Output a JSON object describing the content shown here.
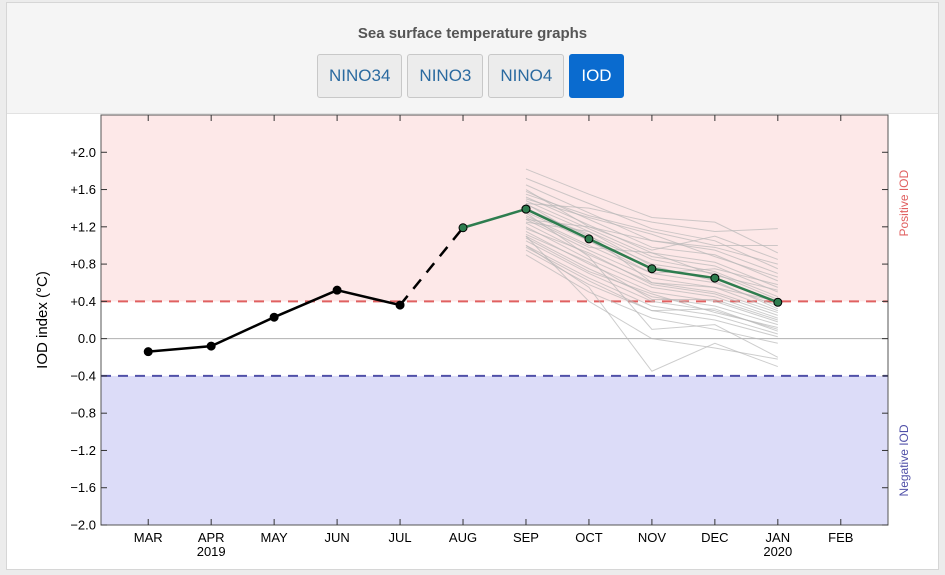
{
  "header": {
    "title": "Sea surface temperature graphs",
    "tabs": [
      {
        "label": "NINO34",
        "active": false
      },
      {
        "label": "NINO3",
        "active": false
      },
      {
        "label": "NINO4",
        "active": false
      },
      {
        "label": "IOD",
        "active": true
      }
    ]
  },
  "colors": {
    "positive_zone": "#fde8e8",
    "negative_zone": "#dcdcf8",
    "positive_line": "#e06060",
    "negative_line": "#5050a8",
    "observed": "#000000",
    "forecast_mean": "#2e7d4f",
    "ensemble": "#b8b8b8",
    "active_tab": "#0a6bcf"
  },
  "chart_data": {
    "type": "line",
    "ylabel": "IOD index (°C)",
    "ylim": [
      -2.0,
      2.4
    ],
    "yticks": [
      -2.0,
      -1.6,
      -1.2,
      -0.8,
      -0.4,
      0.0,
      0.4,
      0.8,
      1.2,
      1.6,
      2.0
    ],
    "ytick_labels": [
      "−2.0",
      "−1.6",
      "−1.2",
      "−0.8",
      "−0.4",
      "0.0",
      "+0.4",
      "+0.8",
      "+1.2",
      "+1.6",
      "+2.0"
    ],
    "xlim": [
      -0.75,
      11.75
    ],
    "x_categories": [
      "MAR",
      "APR",
      "MAY",
      "JUN",
      "JUL",
      "AUG",
      "SEP",
      "OCT",
      "NOV",
      "DEC",
      "JAN",
      "FEB"
    ],
    "x_year_labels": [
      {
        "index": 1,
        "label": "2019"
      },
      {
        "index": 10,
        "label": "2020"
      }
    ],
    "thresholds": {
      "positive": 0.4,
      "negative": -0.4
    },
    "zone_labels": {
      "positive": "Positive IOD",
      "negative": "Negative IOD"
    },
    "series": [
      {
        "kind": "observed",
        "x": [
          "MAR",
          "APR",
          "MAY",
          "JUN",
          "JUL"
        ],
        "values": [
          -0.14,
          -0.08,
          0.23,
          0.52,
          0.36
        ]
      },
      {
        "kind": "gap",
        "x": [
          "JUL",
          "AUG"
        ],
        "values": [
          0.36,
          1.19
        ]
      },
      {
        "kind": "recent",
        "x": [
          "AUG",
          "SEP"
        ],
        "values": [
          1.19,
          1.39
        ]
      },
      {
        "kind": "forecast_mean",
        "x": [
          "SEP",
          "OCT",
          "NOV",
          "DEC",
          "JAN"
        ],
        "values": [
          1.39,
          1.07,
          0.75,
          0.65,
          0.39
        ]
      }
    ],
    "ensemble": {
      "x": [
        "SEP",
        "OCT",
        "NOV",
        "DEC",
        "JAN"
      ],
      "members": [
        [
          1.82,
          1.55,
          1.3,
          1.25,
          0.92
        ],
        [
          1.72,
          1.45,
          1.18,
          1.05,
          0.75
        ],
        [
          1.65,
          1.35,
          1.05,
          0.95,
          0.7
        ],
        [
          1.58,
          1.28,
          0.98,
          0.9,
          0.62
        ],
        [
          1.52,
          1.22,
          0.92,
          0.82,
          0.55
        ],
        [
          1.48,
          1.18,
          0.88,
          0.78,
          0.5
        ],
        [
          1.44,
          1.15,
          0.85,
          0.72,
          0.45
        ],
        [
          1.4,
          1.1,
          0.8,
          0.7,
          0.42
        ],
        [
          1.36,
          1.05,
          0.75,
          0.65,
          0.38
        ],
        [
          1.32,
          1.0,
          0.7,
          0.6,
          0.35
        ],
        [
          1.28,
          0.95,
          0.65,
          0.55,
          0.3
        ],
        [
          1.24,
          0.9,
          0.6,
          0.5,
          0.28
        ],
        [
          1.2,
          0.85,
          0.55,
          0.45,
          0.22
        ],
        [
          1.15,
          0.8,
          0.5,
          0.4,
          0.18
        ],
        [
          1.1,
          0.75,
          0.45,
          0.35,
          0.15
        ],
        [
          1.05,
          0.7,
          0.4,
          0.3,
          0.1
        ],
        [
          1.0,
          0.65,
          0.35,
          0.25,
          0.05
        ],
        [
          0.95,
          0.58,
          0.3,
          0.2,
          0.02
        ],
        [
          0.9,
          0.5,
          0.22,
          0.1,
          -0.05
        ],
        [
          1.6,
          1.2,
          0.95,
          1.1,
          0.85
        ],
        [
          1.5,
          1.3,
          1.12,
          0.88,
          0.66
        ],
        [
          1.45,
          1.05,
          0.7,
          0.75,
          0.58
        ],
        [
          1.38,
          1.12,
          0.6,
          0.55,
          0.4
        ],
        [
          1.3,
          0.98,
          0.92,
          0.68,
          0.52
        ],
        [
          1.25,
          1.15,
          0.78,
          0.62,
          0.32
        ],
        [
          1.18,
          0.92,
          0.58,
          0.48,
          0.25
        ],
        [
          1.12,
          0.82,
          0.42,
          0.42,
          0.2
        ],
        [
          1.08,
          0.72,
          0.48,
          0.28,
          0.12
        ],
        [
          0.98,
          0.62,
          0.3,
          0.32,
          0.08
        ],
        [
          1.35,
          0.88,
          0.1,
          0.15,
          -0.2
        ],
        [
          1.0,
          0.55,
          -0.35,
          -0.05,
          -0.3
        ],
        [
          1.1,
          0.4,
          0.0,
          -0.1,
          -0.22
        ],
        [
          1.45,
          1.4,
          1.25,
          1.15,
          1.18
        ],
        [
          1.55,
          1.32,
          1.15,
          1.0,
          1.0
        ],
        [
          1.28,
          1.2,
          1.05,
          0.98,
          0.8
        ]
      ]
    }
  }
}
